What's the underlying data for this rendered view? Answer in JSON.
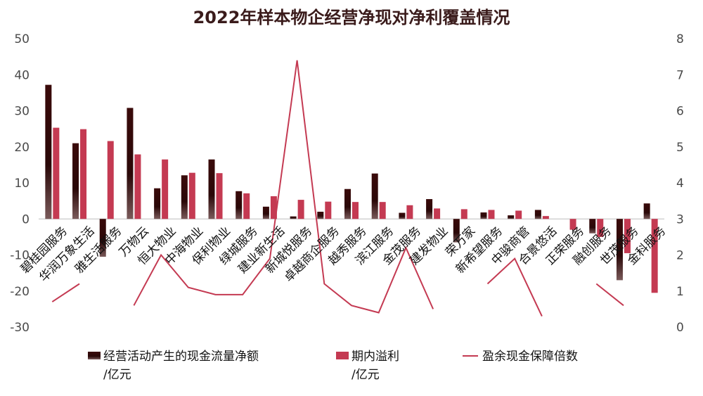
{
  "chart_data": {
    "type": "bar",
    "title": "2022年样本物企经营净现对净利覆盖情况",
    "categories": [
      "碧桂园服务",
      "华润万象生活",
      "雅生活服务",
      "万物云",
      "恒大物业",
      "中海物业",
      "保利物业",
      "绿城服务",
      "建业新生活",
      "新城悦服务",
      "卓越商企服务",
      "越秀服务",
      "滨江服务",
      "金茂服务",
      "建发物业",
      "荣万家",
      "新希望服务",
      "中骏商管",
      "合景悠活",
      "正荣服务",
      "融创服务",
      "世茂服务",
      "金科服务"
    ],
    "series": [
      {
        "name": "经营活动产生的现金流量净额/亿元",
        "axis": "left",
        "type": "bar",
        "color": "#3a1010",
        "values": [
          37.2,
          21.0,
          -10.5,
          30.8,
          8.5,
          12.1,
          16.5,
          7.7,
          3.4,
          0.7,
          2.0,
          8.3,
          12.6,
          1.7,
          5.5,
          -6.5,
          1.8,
          1.0,
          2.5,
          0,
          -4.0,
          -17.0,
          4.3
        ]
      },
      {
        "name": "期内溢利/亿元",
        "axis": "right_bar",
        "type": "bar",
        "color": "#c43a52",
        "values": [
          25.3,
          24.9,
          21.6,
          17.9,
          16.5,
          12.8,
          12.7,
          7.1,
          6.3,
          5.3,
          4.8,
          4.7,
          4.7,
          3.8,
          2.9,
          2.7,
          2.5,
          2.3,
          0.8,
          -3.0,
          -5.0,
          -9.5,
          -20.5
        ]
      },
      {
        "name": "盈余现金保障倍数",
        "axis": "right",
        "type": "line",
        "color": "#c43a52",
        "values": [
          0.7,
          1.2,
          null,
          0.6,
          2.0,
          1.1,
          0.9,
          0.9,
          1.9,
          7.4,
          1.2,
          0.6,
          0.4,
          2.2,
          0.5,
          null,
          1.2,
          1.9,
          0.3,
          null,
          1.2,
          0.6,
          null
        ]
      }
    ],
    "y_left": {
      "min": -30,
      "max": 50,
      "ticks": [
        "-30",
        "-20",
        "-10",
        "0",
        "10",
        "20",
        "30",
        "40",
        "50"
      ]
    },
    "y_right": {
      "min": 0,
      "max": 8,
      "ticks": [
        "0",
        "1",
        "2",
        "3",
        "4",
        "5",
        "6",
        "7",
        "8"
      ]
    },
    "grid": false,
    "legend_position": "bottom"
  },
  "legend": [
    {
      "label_line1": "经营活动产生的现金流量净额",
      "label_line2": "/亿元",
      "color": "#3a1010",
      "kind": "bar"
    },
    {
      "label_line1": "期内溢利",
      "label_line2": "/亿元",
      "color": "#c43a52",
      "kind": "bar"
    },
    {
      "label_line1": "盈余现金保障倍数",
      "label_line2": "",
      "color": "#c43a52",
      "kind": "line"
    }
  ]
}
